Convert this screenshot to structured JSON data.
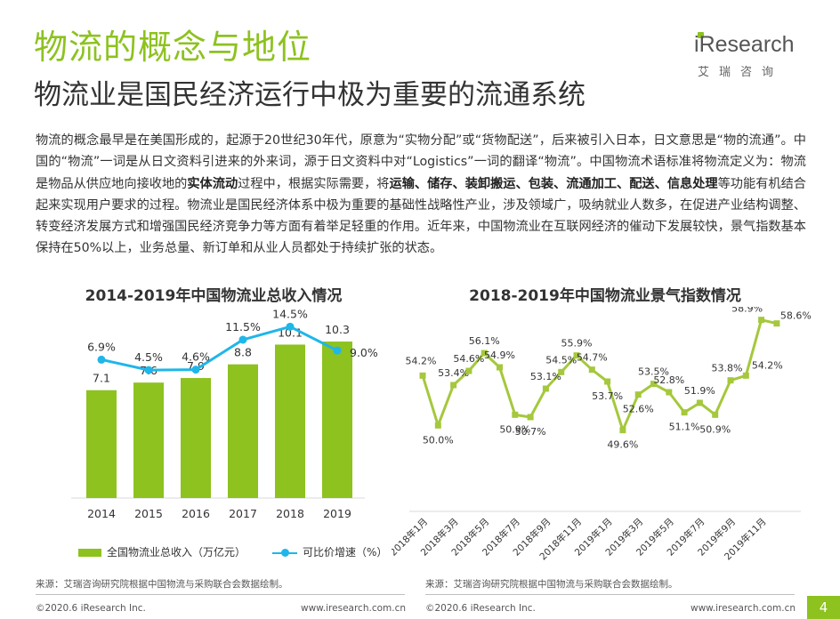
{
  "header": {
    "title": "物流的概念与地位",
    "subtitle": "物流业是国民经济运行中极为重要的流通系统",
    "logo_text": "Research",
    "logo_prefix": "i",
    "logo_sub": "艾瑞咨询"
  },
  "body": {
    "segments": [
      {
        "text": "物流的概念最早是在美国形成的，起源于20世纪30年代，原意为“实物分配”或“货物配送”，后来被引入日本，日文意思是“物的流通”。中国的“物流”一词是从日文资料引进来的外来词，源于日文资料中对“Logistics”一词的翻译“物流”。中国物流术语标准将物流定义为：物流是物品从供应地向接收地的",
        "bold": false
      },
      {
        "text": "实体流动",
        "bold": true
      },
      {
        "text": "过程中，根据实际需要，将",
        "bold": false
      },
      {
        "text": "运输、储存、装卸搬运、包装、流通加工、配送、信息处理",
        "bold": true
      },
      {
        "text": "等功能有机结合起来实现用户要求的过程。物流业是国民经济体系中极为重要的基础性战略性产业，涉及领域广，吸纳就业人数多，在促进产业结构调整、转变经济发展方式和增强国民经济竞争力等方面有着举足轻重的作用。近年来，中国物流业在互联网经济的催动下发展较快，景气指数基本保持在50%以上，业务总量、新订单和从业人员都处于持续扩张的状态。",
        "bold": false
      }
    ]
  },
  "chart_data": [
    {
      "type": "bar",
      "title": "2014-2019年中国物流业总收入情况",
      "categories": [
        "2014",
        "2015",
        "2016",
        "2017",
        "2018",
        "2019"
      ],
      "series": [
        {
          "name": "全国物流业总收入（万亿元）",
          "type": "bar",
          "values": [
            7.1,
            7.6,
            7.9,
            8.8,
            10.1,
            10.3
          ],
          "labels": [
            "7.1",
            "7.6",
            "7.9",
            "8.8",
            "10.1",
            "10.3"
          ],
          "color": "#8dc21f"
        },
        {
          "name": "可比价增速（%）",
          "type": "line",
          "values": [
            6.9,
            4.5,
            4.6,
            11.5,
            14.5,
            9.0
          ],
          "labels": [
            "6.9%",
            "4.5%",
            "4.6%",
            "11.5%",
            "14.5%",
            "9.0%"
          ],
          "color": "#1fb6e9"
        }
      ],
      "bar_ylim": [
        0,
        12
      ],
      "line_ylim": [
        -25,
        16
      ],
      "grid": false,
      "legend": "bottom"
    },
    {
      "type": "line",
      "title": "2018-2019年中国物流业景气指数情况",
      "x": [
        "2018年1月",
        "2018年2月",
        "2018年3月",
        "2018年4月",
        "2018年5月",
        "2018年6月",
        "2018年7月",
        "2018年8月",
        "2018年9月",
        "2018年10月",
        "2018年11月",
        "2018年12月",
        "2019年1月",
        "2019年2月",
        "2019年3月",
        "2019年4月",
        "2019年5月",
        "2019年6月",
        "2019年7月",
        "2019年8月",
        "2019年9月",
        "2019年10月",
        "2019年11月",
        "2019年12月"
      ],
      "x_tick_labels": [
        "2018年1月",
        "2018年3月",
        "2018年5月",
        "2018年7月",
        "2018年9月",
        "2018年11月",
        "2019年1月",
        "2019年3月",
        "2019年5月",
        "2019年7月",
        "2019年9月",
        "2019年11月"
      ],
      "series": [
        {
          "name": "物流业景气指数",
          "values": [
            54.2,
            50.0,
            53.4,
            54.6,
            56.1,
            54.9,
            50.9,
            50.7,
            53.1,
            54.5,
            55.9,
            54.7,
            53.7,
            49.6,
            52.6,
            53.5,
            52.8,
            51.1,
            51.9,
            50.9,
            53.8,
            54.2,
            58.9,
            58.6
          ],
          "labels": [
            "54.2%",
            "50.0%",
            "53.4%",
            "54.6%",
            "56.1%",
            "54.9%",
            "50.9%",
            "50.7%",
            "53.1%",
            "54.5%",
            "55.9%",
            "54.7%",
            "53.7%",
            "49.6%",
            "52.6%",
            "53.5%",
            "52.8%",
            "51.1%",
            "51.9%",
            "50.9%",
            "53.8%",
            "54.2%",
            "58.9%",
            "58.6%"
          ],
          "color": "#a5c83c"
        }
      ],
      "ylim": [
        45,
        60
      ],
      "grid": false
    }
  ],
  "footer": {
    "source1": "来源：艾瑞咨询研究院根据中国物流与采购联合会数据绘制。",
    "source2": "来源：艾瑞咨询研究院根据中国物流与采购联合会数据绘制。",
    "copyright1": "©2020.6 iResearch Inc.",
    "url1": "www.iresearch.com.cn",
    "copyright2": "©2020.6 iResearch Inc.",
    "url2": "www.iresearch.com.cn",
    "page_number": "4"
  }
}
